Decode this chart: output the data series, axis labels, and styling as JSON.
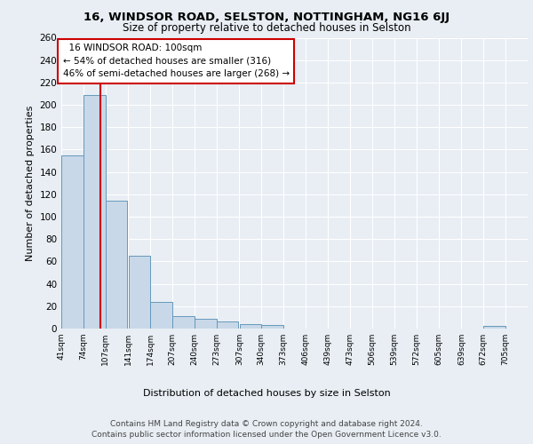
{
  "title1": "16, WINDSOR ROAD, SELSTON, NOTTINGHAM, NG16 6JJ",
  "title2": "Size of property relative to detached houses in Selston",
  "xlabel": "Distribution of detached houses by size in Selston",
  "ylabel": "Number of detached properties",
  "bins": [
    41,
    74,
    107,
    141,
    174,
    207,
    240,
    273,
    307,
    340,
    373,
    406,
    439,
    473,
    506,
    539,
    572,
    605,
    639,
    672,
    705
  ],
  "counts": [
    155,
    209,
    114,
    65,
    24,
    11,
    9,
    6,
    4,
    3,
    0,
    0,
    0,
    0,
    0,
    0,
    0,
    0,
    0,
    2,
    0
  ],
  "bar_color": "#c8d8e8",
  "bar_edge_color": "#6699bb",
  "red_line_x": 100,
  "annotation_title": "16 WINDSOR ROAD: 100sqm",
  "annotation_line1": "← 54% of detached houses are smaller (316)",
  "annotation_line2": "46% of semi-detached houses are larger (268) →",
  "annotation_box_color": "#ffffff",
  "annotation_border_color": "#cc0000",
  "footer1": "Contains HM Land Registry data © Crown copyright and database right 2024.",
  "footer2": "Contains public sector information licensed under the Open Government Licence v3.0.",
  "bg_color": "#e8eef4",
  "plot_bg_color": "#e8eef4",
  "grid_color": "#ffffff",
  "ylim": [
    0,
    260
  ],
  "yticks": [
    0,
    20,
    40,
    60,
    80,
    100,
    120,
    140,
    160,
    180,
    200,
    220,
    240,
    260
  ]
}
